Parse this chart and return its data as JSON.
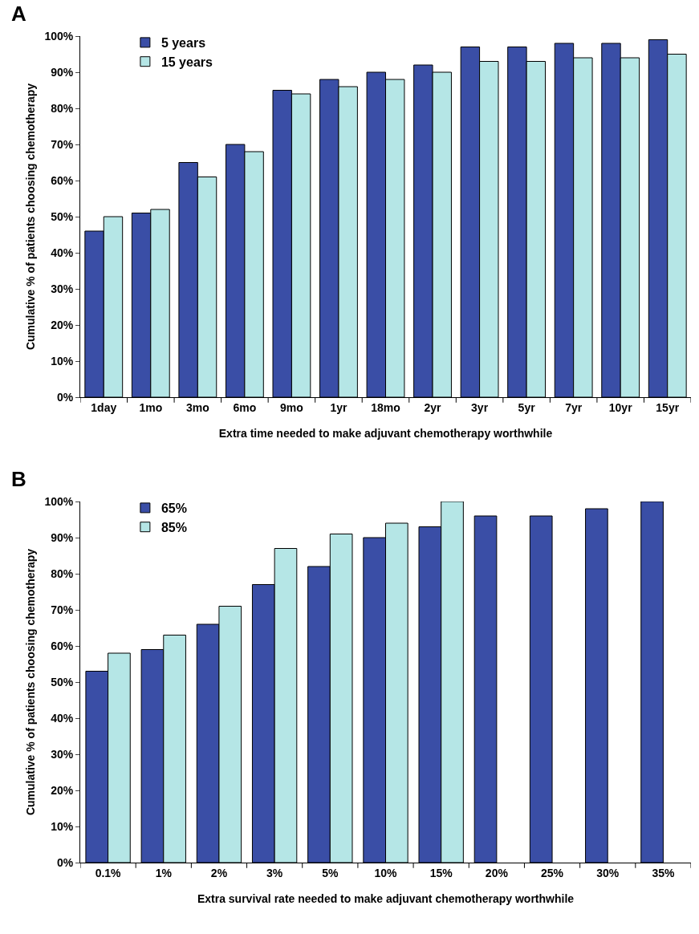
{
  "chart_data": [
    {
      "type": "bar",
      "annotations": [
        "A"
      ],
      "xlabel": "Extra time needed to make adjuvant chemotherapy worthwhile",
      "ylabel": "Cumulative % of patients choosing chemotherapy",
      "categories": [
        "1day",
        "1mo",
        "3mo",
        "6mo",
        "9mo",
        "1yr",
        "18mo",
        "2yr",
        "3yr",
        "5yr",
        "7yr",
        "10yr",
        "15yr"
      ],
      "series": [
        {
          "name": "5 years",
          "color": "#3a4ea6",
          "values": [
            46,
            51,
            65,
            70,
            85,
            88,
            90,
            92,
            97,
            97,
            98,
            98,
            99
          ]
        },
        {
          "name": "15 years",
          "color": "#b5e6e6",
          "values": [
            50,
            52,
            61,
            68,
            84,
            86,
            88,
            90,
            93,
            93,
            94,
            94,
            95
          ]
        }
      ],
      "ylim": [
        0,
        100
      ],
      "yticks": [
        {
          "value": 0,
          "label": "0%"
        },
        {
          "value": 10,
          "label": "10%"
        },
        {
          "value": 20,
          "label": "20%"
        },
        {
          "value": 30,
          "label": "30%"
        },
        {
          "value": 40,
          "label": "40%"
        },
        {
          "value": 50,
          "label": "50%"
        },
        {
          "value": 60,
          "label": "60%"
        },
        {
          "value": 70,
          "label": "70%"
        },
        {
          "value": 80,
          "label": "80%"
        },
        {
          "value": 90,
          "label": "90%"
        },
        {
          "value": 100,
          "label": "100%"
        }
      ],
      "grid": false,
      "legend": "top left"
    },
    {
      "type": "bar",
      "annotations": [
        "B"
      ],
      "xlabel": "Extra survival rate needed to make adjuvant chemotherapy worthwhile",
      "ylabel": "Cumulative % of patients choosing chemotherapy",
      "categories": [
        "0.1%",
        "1%",
        "2%",
        "3%",
        "5%",
        "10%",
        "15%",
        "20%",
        "25%",
        "30%",
        "35%"
      ],
      "series": [
        {
          "name": "65%",
          "color": "#3a4ea6",
          "values": [
            53,
            59,
            66,
            77,
            82,
            90,
            93,
            96,
            96,
            98,
            100
          ]
        },
        {
          "name": "85%",
          "color": "#b5e6e6",
          "values": [
            58,
            63,
            71,
            87,
            91,
            94,
            100,
            null,
            null,
            null,
            null
          ]
        }
      ],
      "ylim": [
        0,
        100
      ],
      "yticks": [
        {
          "value": 0,
          "label": "0%"
        },
        {
          "value": 10,
          "label": "10%"
        },
        {
          "value": 20,
          "label": "20%"
        },
        {
          "value": 30,
          "label": "30%"
        },
        {
          "value": 40,
          "label": "40%"
        },
        {
          "value": 50,
          "label": "50%"
        },
        {
          "value": 60,
          "label": "60%"
        },
        {
          "value": 70,
          "label": "70%"
        },
        {
          "value": 80,
          "label": "80%"
        },
        {
          "value": 90,
          "label": "90%"
        },
        {
          "value": 100,
          "label": "100%"
        }
      ],
      "grid": false,
      "legend": "top left"
    }
  ]
}
